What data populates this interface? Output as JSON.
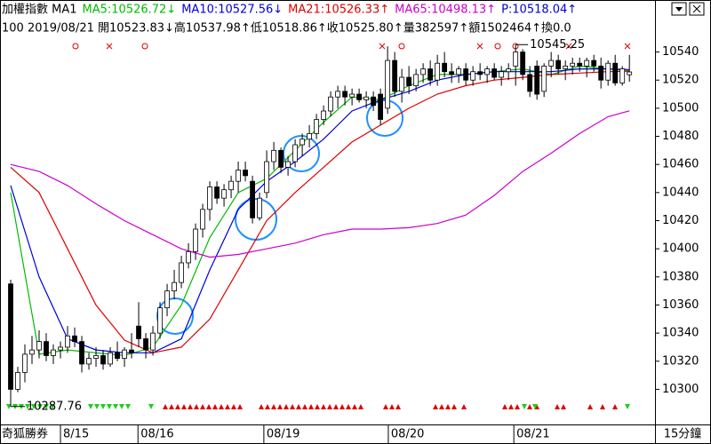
{
  "chart_data": {
    "type": "candlestick",
    "header": [
      {
        "text": "加權指數 MA1",
        "color": "#000000"
      }
    ],
    "info_line": "100 2019/08/21 開10523.83↓高10537.98↑低10518.86↑收10525.80↑量382597↑額1502464↑換0.0",
    "high_label": "10545.25",
    "low_label": "10287.76",
    "footer_label": "奇狐勝券",
    "period": "15分鐘",
    "open": [
      10375,
      10300,
      10312,
      10325,
      10328,
      10334,
      10324,
      10328,
      10330,
      10338,
      10334,
      10318,
      10322,
      10324,
      10318,
      10326,
      10322,
      10328,
      10345,
      10336,
      10328,
      10340,
      10358,
      10370,
      10376,
      10390,
      10398,
      10414,
      10428,
      10444,
      10436,
      10442,
      10448,
      10456,
      10448,
      10422,
      10440,
      10462,
      10470,
      10458,
      10462,
      10474,
      10478,
      10482,
      10492,
      10498,
      10508,
      10512,
      10508,
      10510,
      10506,
      10508,
      10510,
      10500,
      10534,
      10512,
      10522,
      10516,
      10524,
      10528,
      10520,
      10532,
      10526,
      10524,
      10528,
      10520,
      10526,
      10524,
      10528,
      10522,
      10526,
      10530,
      10540,
      10524,
      10530,
      10512,
      10530,
      10534,
      10528,
      10530,
      10532,
      10530,
      10534,
      10530,
      10520,
      10532,
      10518,
      10523.83
    ],
    "high": [
      10378,
      10316,
      10332,
      10338,
      10342,
      10340,
      10332,
      10334,
      10345,
      10344,
      10338,
      10326,
      10330,
      10328,
      10330,
      10334,
      10330,
      10340,
      10362,
      10340,
      10345,
      10362,
      10375,
      10385,
      10395,
      10404,
      10418,
      10432,
      10448,
      10448,
      10446,
      10452,
      10462,
      10462,
      10452,
      10440,
      10470,
      10476,
      10472,
      10466,
      10478,
      10482,
      10488,
      10496,
      10502,
      10512,
      10516,
      10516,
      10514,
      10514,
      10512,
      10512,
      10514,
      10544,
      10540,
      10528,
      10530,
      10528,
      10532,
      10534,
      10538,
      10540,
      10532,
      10530,
      10532,
      10530,
      10532,
      10530,
      10532,
      10530,
      10532,
      10545.25,
      10542,
      10530,
      10534,
      10532,
      10540,
      10538,
      10534,
      10536,
      10536,
      10536,
      10538,
      10536,
      10534,
      10538,
      10530,
      10537.98
    ],
    "low": [
      10287.76,
      10298,
      10305,
      10318,
      10322,
      10320,
      10318,
      10322,
      10326,
      10330,
      10312,
      10314,
      10316,
      10314,
      10316,
      10320,
      10316,
      10322,
      10330,
      10322,
      10324,
      10336,
      10352,
      10364,
      10372,
      10386,
      10392,
      10408,
      10420,
      10432,
      10430,
      10436,
      10440,
      10448,
      10418,
      10420,
      10436,
      10456,
      10454,
      10452,
      10458,
      10466,
      10472,
      10478,
      10488,
      10494,
      10500,
      10502,
      10502,
      10504,
      10500,
      10498,
      10488,
      10496,
      10508,
      10504,
      10510,
      10512,
      10518,
      10516,
      10516,
      10522,
      10518,
      10518,
      10516,
      10516,
      10520,
      10518,
      10520,
      10516,
      10520,
      10516,
      10520,
      10508,
      10506,
      10508,
      10522,
      10524,
      10520,
      10524,
      10526,
      10522,
      10526,
      10514,
      10516,
      10516,
      10516,
      10518.86
    ],
    "close": [
      10300,
      10312,
      10325,
      10328,
      10334,
      10324,
      10328,
      10330,
      10338,
      10334,
      10318,
      10322,
      10324,
      10318,
      10326,
      10322,
      10328,
      10326,
      10336,
      10328,
      10340,
      10358,
      10370,
      10376,
      10390,
      10398,
      10414,
      10428,
      10444,
      10436,
      10442,
      10448,
      10456,
      10452,
      10422,
      10436,
      10462,
      10470,
      10458,
      10462,
      10474,
      10478,
      10482,
      10492,
      10498,
      10508,
      10512,
      10508,
      10510,
      10506,
      10508,
      10502,
      10492,
      10534,
      10512,
      10522,
      10516,
      10524,
      10528,
      10520,
      10532,
      10526,
      10524,
      10528,
      10520,
      10526,
      10524,
      10528,
      10522,
      10526,
      10528,
      10540,
      10524,
      10512,
      10510,
      10530,
      10534,
      10528,
      10530,
      10532,
      10530,
      10534,
      10530,
      10520,
      10532,
      10518,
      10528,
      10525.8
    ],
    "series": [
      {
        "name": "MA5:10526.72↓",
        "color": "#00bb00",
        "x": [
          0,
          4,
          8,
          12,
          16,
          20,
          24,
          28,
          32,
          36,
          40,
          44,
          48,
          52,
          56,
          60,
          64,
          68,
          72,
          76,
          80,
          84,
          87
        ],
        "values": [
          10440,
          10325,
          10328,
          10326,
          10324,
          10330,
          10360,
          10408,
          10440,
          10450,
          10470,
          10490,
          10508,
          10506,
          10516,
          10524,
          10524,
          10526,
          10528,
          10524,
          10530,
          10528,
          10526.72
        ]
      },
      {
        "name": "MA10:10527.56↓",
        "color": "#0000dd",
        "x": [
          0,
          4,
          8,
          12,
          16,
          20,
          24,
          28,
          32,
          36,
          40,
          44,
          48,
          52,
          56,
          60,
          64,
          68,
          72,
          76,
          80,
          84,
          87
        ],
        "values": [
          10445,
          10380,
          10336,
          10328,
          10326,
          10326,
          10336,
          10385,
          10428,
          10448,
          10462,
          10478,
          10498,
          10506,
          10512,
          10520,
          10524,
          10526,
          10526,
          10526,
          10528,
          10528,
          10527.56
        ]
      },
      {
        "name": "MA21:10526.33↑",
        "color": "#dd0000",
        "x": [
          0,
          4,
          8,
          12,
          16,
          20,
          24,
          28,
          32,
          36,
          40,
          44,
          48,
          52,
          56,
          60,
          64,
          68,
          72,
          76,
          80,
          84,
          87
        ],
        "values": [
          10458,
          10440,
          10400,
          10360,
          10335,
          10326,
          10330,
          10350,
          10385,
          10420,
          10440,
          10458,
          10476,
          10488,
          10500,
          10510,
          10516,
          10520,
          10522,
          10524,
          10525,
          10526,
          10526.33
        ]
      },
      {
        "name": "MA65:10498.13↑",
        "color": "#cc00cc",
        "x": [
          0,
          4,
          8,
          12,
          16,
          20,
          24,
          28,
          32,
          36,
          40,
          44,
          48,
          52,
          56,
          60,
          64,
          68,
          72,
          76,
          80,
          84,
          87
        ],
        "values": [
          10460,
          10455,
          10445,
          10432,
          10420,
          10410,
          10400,
          10394,
          10396,
          10400,
          10404,
          10410,
          10414,
          10414,
          10415,
          10418,
          10424,
          10438,
          10455,
          10468,
          10482,
          10494,
          10498.13
        ]
      }
    ],
    "p_label": {
      "text": "P:10518.04↑",
      "color": "#0000dd"
    },
    "ylim": [
      10275,
      10577
    ],
    "yticks": [
      10300,
      10320,
      10340,
      10360,
      10380,
      10400,
      10420,
      10440,
      10460,
      10480,
      10500,
      10520,
      10540
    ],
    "xlim": [
      -1.5,
      90.6
    ],
    "xticks": [
      {
        "value": 7,
        "label": "8/15"
      },
      {
        "value": 17.9,
        "label": "08/16"
      },
      {
        "value": 35.6,
        "label": "08/19"
      },
      {
        "value": 53.1,
        "label": "08/20"
      },
      {
        "value": 70.75,
        "label": "08/21"
      }
    ],
    "up_color": "#ffffff",
    "down_color": "#000000"
  }
}
